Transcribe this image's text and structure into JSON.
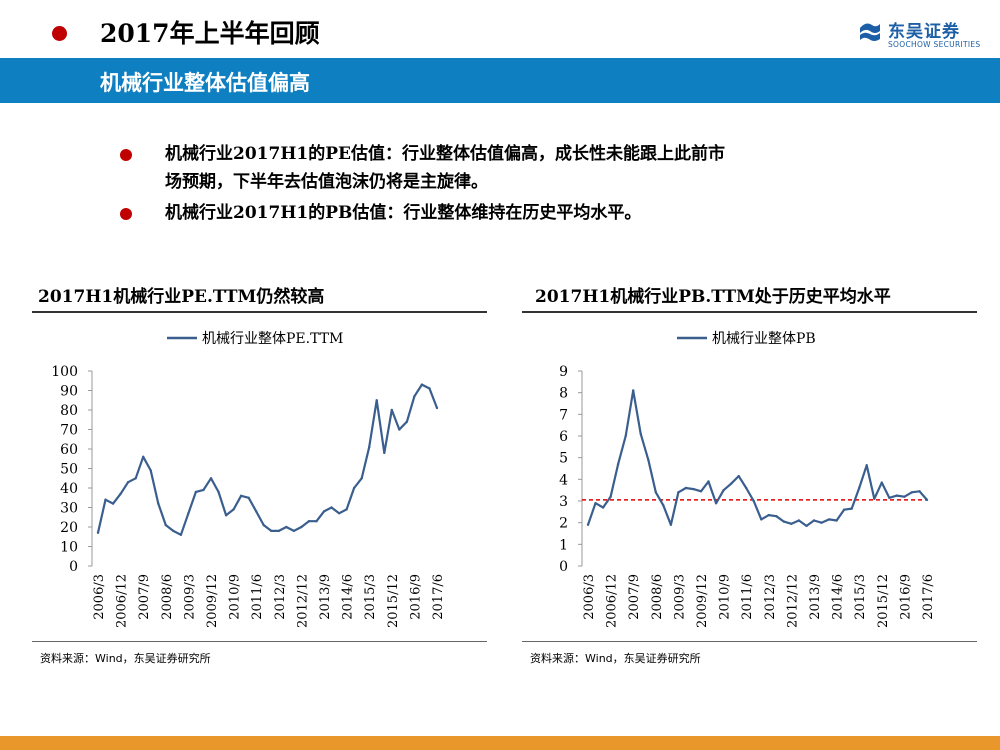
{
  "header": {
    "title": "2017年上半年回顾"
  },
  "logo": {
    "name": "东吴证券",
    "english": "SOOCHOW SECURITIES",
    "mark": "SCS"
  },
  "banner": {
    "text": "机械行业整体估值偏高"
  },
  "bullets": [
    {
      "line1": "机械行业2017H1的PE估值：行业整体估值偏高，成长性未能跟上此前市",
      "line2": "场预期，下半年去估值泡沫仍将是主旋律。"
    },
    {
      "line1": "机械行业2017H1的PB估值：行业整体维持在历史平均水平。"
    }
  ],
  "colors": {
    "accent_blue": "#0e7fc1",
    "bullet_red": "#c00000",
    "series": "#3a5f8e",
    "reference": "#e00000",
    "footer": "#e9962a"
  },
  "chart_data": [
    {
      "type": "line",
      "title": "2017H1机械行业PE.TTM仍然较高",
      "legend": "top",
      "ylim": [
        0,
        100
      ],
      "yticks": [
        0,
        10,
        20,
        30,
        40,
        50,
        60,
        70,
        80,
        90,
        100
      ],
      "xticks": [
        "2006/3",
        "2006/12",
        "2007/9",
        "2008/6",
        "2009/3",
        "2009/12",
        "2010/9",
        "2011/6",
        "2012/3",
        "2012/12",
        "2013/9",
        "2014/6",
        "2015/3",
        "2015/12",
        "2016/9",
        "2017/6"
      ],
      "series": [
        {
          "name": "机械行业整体PE.TTM",
          "values": [
            17,
            34,
            32,
            37,
            43,
            45,
            56,
            49,
            32,
            21,
            18,
            16,
            27,
            38,
            39,
            45,
            38,
            26,
            29,
            36,
            35,
            28,
            21,
            18,
            18,
            20,
            18,
            20,
            23,
            23,
            28,
            30,
            27,
            29,
            40,
            45,
            61,
            85,
            58,
            80,
            70,
            74,
            87,
            93,
            91,
            81
          ]
        }
      ],
      "source": "资料来源：Wind，东吴证券研究所"
    },
    {
      "type": "line",
      "title": "2017H1机械行业PB.TTM处于历史平均水平",
      "legend": "top",
      "ylim": [
        0,
        9
      ],
      "yticks": [
        0,
        1,
        2,
        3,
        4,
        5,
        6,
        7,
        8,
        9
      ],
      "xticks": [
        "2006/3",
        "2006/12",
        "2007/9",
        "2008/6",
        "2009/3",
        "2009/12",
        "2010/9",
        "2011/6",
        "2012/3",
        "2012/12",
        "2013/9",
        "2014/6",
        "2015/3",
        "2015/12",
        "2016/9",
        "2017/6"
      ],
      "reference_line": 3.05,
      "series": [
        {
          "name": "机械行业整体PB",
          "values": [
            1.9,
            2.9,
            2.7,
            3.2,
            4.7,
            6.0,
            8.1,
            6.1,
            4.9,
            3.4,
            2.8,
            1.9,
            3.4,
            3.6,
            3.55,
            3.45,
            3.9,
            2.9,
            3.5,
            3.8,
            4.15,
            3.6,
            3.0,
            2.15,
            2.35,
            2.3,
            2.05,
            1.95,
            2.1,
            1.85,
            2.1,
            2.0,
            2.15,
            2.1,
            2.6,
            2.65,
            3.6,
            4.65,
            3.1,
            3.85,
            3.15,
            3.25,
            3.2,
            3.4,
            3.45,
            3.05
          ]
        }
      ],
      "source": "资料来源：Wind，东吴证券研究所"
    }
  ]
}
